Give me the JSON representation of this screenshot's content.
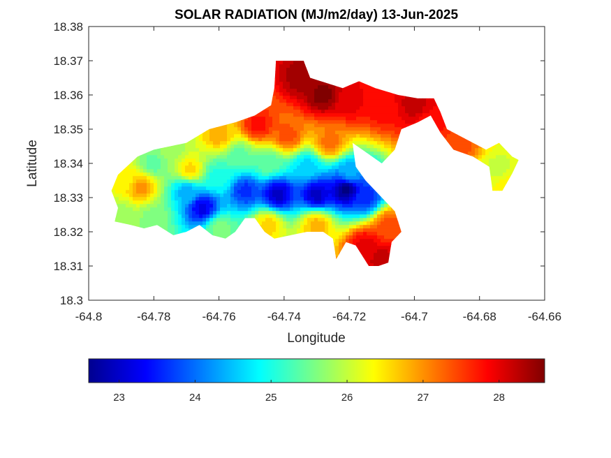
{
  "chart_data": {
    "type": "heatmap",
    "title": "SOLAR RADIATION (MJ/m2/day) 13-Jun-2025",
    "xlabel": "Longitude",
    "ylabel": "Latitude",
    "xlim": [
      -64.8,
      -64.66
    ],
    "ylim": [
      18.3,
      18.38
    ],
    "xticks": [
      -64.8,
      -64.78,
      -64.76,
      -64.74,
      -64.72,
      -64.7,
      -64.68,
      -64.66
    ],
    "xtick_labels": [
      "-64.8",
      "-64.78",
      "-64.76",
      "-64.74",
      "-64.72",
      "-64.7",
      "-64.68",
      "-64.66"
    ],
    "yticks": [
      18.3,
      18.31,
      18.32,
      18.33,
      18.34,
      18.35,
      18.36,
      18.37,
      18.38
    ],
    "ytick_labels": [
      "18.3",
      "18.31",
      "18.32",
      "18.33",
      "18.34",
      "18.35",
      "18.36",
      "18.37",
      "18.38"
    ],
    "grid": false,
    "colormap": "jet",
    "colorbar": {
      "orientation": "horizontal",
      "placement": "bottom",
      "range": [
        22.6,
        28.6
      ],
      "ticks": [
        23,
        24,
        25,
        26,
        27,
        28
      ],
      "tick_labels": [
        "23",
        "24",
        "25",
        "26",
        "27",
        "28"
      ]
    },
    "landmask": [
      [
        -64.791,
        18.3367
      ],
      [
        -64.785,
        18.342
      ],
      [
        -64.78,
        18.344
      ],
      [
        -64.77,
        18.346
      ],
      [
        -64.763,
        18.35
      ],
      [
        -64.755,
        18.352
      ],
      [
        -64.749,
        18.354
      ],
      [
        -64.744,
        18.357
      ],
      [
        -64.743,
        18.362
      ],
      [
        -64.7425,
        18.37
      ],
      [
        -64.734,
        18.37
      ],
      [
        -64.732,
        18.365
      ],
      [
        -64.722,
        18.362
      ],
      [
        -64.717,
        18.364
      ],
      [
        -64.712,
        18.362
      ],
      [
        -64.705,
        18.36
      ],
      [
        -64.699,
        18.359
      ],
      [
        -64.694,
        18.359
      ],
      [
        -64.692,
        18.355
      ],
      [
        -64.69,
        18.35
      ],
      [
        -64.684,
        18.347
      ],
      [
        -64.678,
        18.344
      ],
      [
        -64.674,
        18.346
      ],
      [
        -64.67,
        18.342
      ],
      [
        -64.668,
        18.341
      ],
      [
        -64.67,
        18.337
      ],
      [
        -64.673,
        18.332
      ],
      [
        -64.676,
        18.332
      ],
      [
        -64.677,
        18.339
      ],
      [
        -64.682,
        18.342
      ],
      [
        -64.688,
        18.344
      ],
      [
        -64.692,
        18.349
      ],
      [
        -64.695,
        18.354
      ],
      [
        -64.699,
        18.352
      ],
      [
        -64.704,
        18.35
      ],
      [
        -64.706,
        18.344
      ],
      [
        -64.71,
        18.34
      ],
      [
        -64.716,
        18.344
      ],
      [
        -64.719,
        18.346
      ],
      [
        -64.718,
        18.339
      ],
      [
        -64.715,
        18.335
      ],
      [
        -64.71,
        18.33
      ],
      [
        -64.706,
        18.326
      ],
      [
        -64.704,
        18.32
      ],
      [
        -64.707,
        18.317
      ],
      [
        -64.708,
        18.311
      ],
      [
        -64.711,
        18.31
      ],
      [
        -64.714,
        18.31
      ],
      [
        -64.718,
        18.316
      ],
      [
        -64.721,
        18.317
      ],
      [
        -64.724,
        18.312
      ],
      [
        -64.725,
        18.318
      ],
      [
        -64.728,
        18.32
      ],
      [
        -64.733,
        18.32
      ],
      [
        -64.738,
        18.319
      ],
      [
        -64.743,
        18.318
      ],
      [
        -64.746,
        18.32
      ],
      [
        -64.749,
        18.324
      ],
      [
        -64.752,
        18.324
      ],
      [
        -64.755,
        18.32
      ],
      [
        -64.758,
        18.318
      ],
      [
        -64.762,
        18.319
      ],
      [
        -64.766,
        18.322
      ],
      [
        -64.77,
        18.32
      ],
      [
        -64.774,
        18.319
      ],
      [
        -64.779,
        18.322
      ],
      [
        -64.783,
        18.321
      ],
      [
        -64.787,
        18.322
      ],
      [
        -64.792,
        18.323
      ],
      [
        -64.791,
        18.327
      ],
      [
        -64.793,
        18.332
      ]
    ],
    "field": [
      {
        "x": -64.784,
        "y": 18.333,
        "value": 27.0
      },
      {
        "x": -64.765,
        "y": 18.327,
        "value": 23.2
      },
      {
        "x": -64.77,
        "y": 18.332,
        "value": 24.4
      },
      {
        "x": -64.752,
        "y": 18.332,
        "value": 23.6
      },
      {
        "x": -64.742,
        "y": 18.331,
        "value": 23.0
      },
      {
        "x": -64.73,
        "y": 18.331,
        "value": 23.0
      },
      {
        "x": -64.721,
        "y": 18.3325,
        "value": 22.6
      },
      {
        "x": -64.715,
        "y": 18.33,
        "value": 23.6
      },
      {
        "x": -64.76,
        "y": 18.336,
        "value": 25.0
      },
      {
        "x": -64.78,
        "y": 18.34,
        "value": 25.4
      },
      {
        "x": -64.775,
        "y": 18.344,
        "value": 25.8
      },
      {
        "x": -64.754,
        "y": 18.342,
        "value": 25.4
      },
      {
        "x": -64.745,
        "y": 18.34,
        "value": 25.4
      },
      {
        "x": -64.733,
        "y": 18.339,
        "value": 24.6
      },
      {
        "x": -64.72,
        "y": 18.337,
        "value": 24.4
      },
      {
        "x": -64.76,
        "y": 18.348,
        "value": 26.8
      },
      {
        "x": -64.748,
        "y": 18.351,
        "value": 27.8
      },
      {
        "x": -64.739,
        "y": 18.348,
        "value": 27.4
      },
      {
        "x": -64.726,
        "y": 18.346,
        "value": 27.2
      },
      {
        "x": -64.728,
        "y": 18.36,
        "value": 28.6
      },
      {
        "x": -64.735,
        "y": 18.365,
        "value": 28.4
      },
      {
        "x": -64.72,
        "y": 18.358,
        "value": 28.0
      },
      {
        "x": -64.71,
        "y": 18.356,
        "value": 27.8
      },
      {
        "x": -64.7,
        "y": 18.357,
        "value": 28.2
      },
      {
        "x": -64.687,
        "y": 18.345,
        "value": 27.4
      },
      {
        "x": -64.674,
        "y": 18.338,
        "value": 26.0
      },
      {
        "x": -64.672,
        "y": 18.334,
        "value": 26.4
      },
      {
        "x": -64.715,
        "y": 18.316,
        "value": 28.0
      },
      {
        "x": -64.71,
        "y": 18.312,
        "value": 28.2
      },
      {
        "x": -64.708,
        "y": 18.322,
        "value": 27.4
      },
      {
        "x": -64.73,
        "y": 18.322,
        "value": 26.8
      },
      {
        "x": -64.745,
        "y": 18.322,
        "value": 26.6
      },
      {
        "x": -64.76,
        "y": 18.321,
        "value": 25.6
      },
      {
        "x": -64.78,
        "y": 18.324,
        "value": 25.6
      },
      {
        "x": -64.79,
        "y": 18.325,
        "value": 25.8
      },
      {
        "x": -64.789,
        "y": 18.335,
        "value": 26.4
      },
      {
        "x": -64.769,
        "y": 18.338,
        "value": 26.6
      },
      {
        "x": -64.695,
        "y": 18.352,
        "value": 27.8
      }
    ]
  }
}
